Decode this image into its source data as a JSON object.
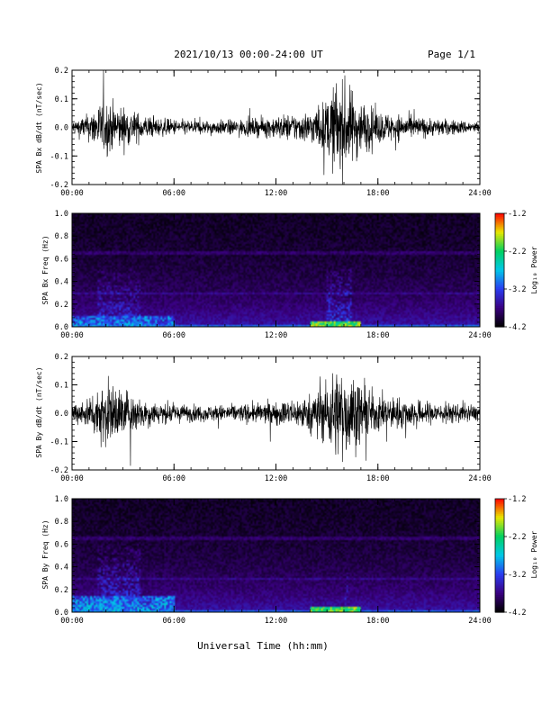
{
  "header": {
    "title": "2021/10/13  00:00-24:00 UT",
    "page": "Page 1/1"
  },
  "x_axis": {
    "label": "Universal Time (hh:mm)",
    "ticks": [
      "00:00",
      "06:00",
      "12:00",
      "18:00",
      "24:00"
    ],
    "range_hours": [
      0,
      24
    ]
  },
  "colorbar": {
    "label": "Log₁₀ Power",
    "ticks": [
      "-1.2",
      "-2.2",
      "-3.2",
      "-4.2"
    ],
    "range": [
      -4.2,
      -1.2
    ],
    "colors": [
      "#000000",
      "#3a0080",
      "#2a3cf0",
      "#00c8e8",
      "#00d060",
      "#e8e800",
      "#ff0000"
    ]
  },
  "panels": [
    {
      "id": "bx-ts",
      "ylabel": "SPA Bx dB/dt (nT/sec)",
      "yticks": [
        "0.2",
        "0.1",
        "0.0",
        "-0.1",
        "-0.2"
      ],
      "ylim": [
        -0.2,
        0.2
      ]
    },
    {
      "id": "bx-spec",
      "ylabel": "SPA Bx Freq (Hz)",
      "yticks": [
        "1.0",
        "0.8",
        "0.6",
        "0.4",
        "0.2",
        "0.0"
      ],
      "ylim": [
        0,
        1
      ]
    },
    {
      "id": "by-ts",
      "ylabel": "SPA By dB/dt (nT/sec)",
      "yticks": [
        "0.2",
        "0.1",
        "0.0",
        "-0.1",
        "-0.2"
      ],
      "ylim": [
        -0.2,
        0.2
      ]
    },
    {
      "id": "by-spec",
      "ylabel": "SPA By Freq (Hz)",
      "yticks": [
        "1.0",
        "0.8",
        "0.6",
        "0.4",
        "0.2",
        "0.0"
      ],
      "ylim": [
        0,
        1
      ]
    }
  ],
  "chart_data": [
    {
      "type": "line",
      "title": "",
      "xlabel": "Universal Time (hh:mm)",
      "ylabel": "SPA Bx dB/dt (nT/sec)",
      "xlim": [
        0,
        24
      ],
      "ylim": [
        -0.2,
        0.2
      ],
      "envelope": {
        "hours": [
          0,
          1,
          1.5,
          2,
          3,
          4,
          5,
          6,
          8,
          10,
          11,
          12,
          13,
          14,
          15,
          15.5,
          16,
          16.5,
          17,
          18,
          19,
          20,
          21,
          22,
          23,
          24
        ],
        "amplitude": [
          0.03,
          0.06,
          0.1,
          0.12,
          0.09,
          0.06,
          0.04,
          0.035,
          0.03,
          0.035,
          0.04,
          0.05,
          0.06,
          0.07,
          0.12,
          0.2,
          0.2,
          0.16,
          0.12,
          0.07,
          0.06,
          0.05,
          0.04,
          0.035,
          0.03,
          0.025
        ]
      }
    },
    {
      "type": "heatmap",
      "title": "",
      "xlabel": "Universal Time (hh:mm)",
      "ylabel": "SPA Bx Freq (Hz)",
      "xlim": [
        0,
        24
      ],
      "ylim": [
        0,
        1
      ],
      "zlabel": "Log₁₀ Power",
      "zlim": [
        -4.2,
        -1.2
      ],
      "peak_regions": [
        {
          "hours": [
            0,
            6
          ],
          "freq_hz": [
            0,
            0.1
          ],
          "log_power": -2.6
        },
        {
          "hours": [
            1.5,
            4
          ],
          "freq_hz": [
            0,
            0.5
          ],
          "log_power": -3.0
        },
        {
          "hours": [
            14,
            17
          ],
          "freq_hz": [
            0,
            0.05
          ],
          "log_power": -1.6
        },
        {
          "hours": [
            15,
            16.5
          ],
          "freq_hz": [
            0.05,
            0.5
          ],
          "log_power": -3.0
        }
      ]
    },
    {
      "type": "line",
      "title": "",
      "xlabel": "Universal Time (hh:mm)",
      "ylabel": "SPA By dB/dt (nT/sec)",
      "xlim": [
        0,
        24
      ],
      "ylim": [
        -0.2,
        0.2
      ],
      "envelope": {
        "hours": [
          0,
          1,
          1.5,
          2,
          3,
          4,
          5,
          6,
          8,
          10,
          11,
          12,
          13,
          14,
          15,
          15.5,
          16,
          16.5,
          17,
          18,
          19,
          20,
          21,
          22,
          23,
          24
        ],
        "amplitude": [
          0.04,
          0.07,
          0.12,
          0.14,
          0.11,
          0.07,
          0.05,
          0.04,
          0.035,
          0.04,
          0.045,
          0.05,
          0.06,
          0.08,
          0.14,
          0.2,
          0.2,
          0.17,
          0.13,
          0.08,
          0.07,
          0.06,
          0.05,
          0.045,
          0.04,
          0.035
        ]
      }
    },
    {
      "type": "heatmap",
      "title": "",
      "xlabel": "Universal Time (hh:mm)",
      "ylabel": "SPA By Freq (Hz)",
      "xlim": [
        0,
        24
      ],
      "ylim": [
        0,
        1
      ],
      "zlabel": "Log₁₀ Power",
      "zlim": [
        -4.2,
        -1.2
      ],
      "peak_regions": [
        {
          "hours": [
            0,
            6
          ],
          "freq_hz": [
            0,
            0.15
          ],
          "log_power": -2.5
        },
        {
          "hours": [
            1.5,
            4
          ],
          "freq_hz": [
            0,
            0.6
          ],
          "log_power": -2.9
        },
        {
          "hours": [
            14,
            17
          ],
          "freq_hz": [
            0,
            0.05
          ],
          "log_power": -1.6
        },
        {
          "hours": [
            16,
            16.2
          ],
          "freq_hz": [
            0,
            1.0
          ],
          "log_power": -3.1
        }
      ]
    }
  ]
}
